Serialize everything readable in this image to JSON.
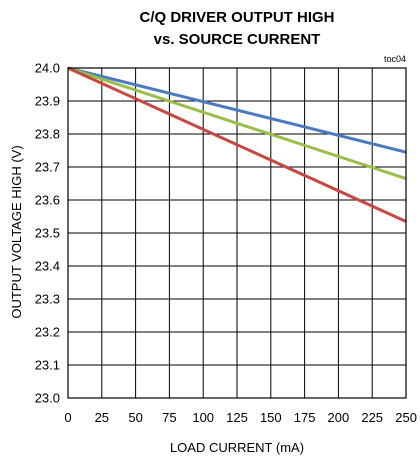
{
  "chart_data": {
    "type": "line",
    "title": "C/Q DRIVER OUTPUT HIGH",
    "subtitle": "vs. SOURCE CURRENT",
    "annotation": "toc04",
    "xlabel": "LOAD CURRENT  (mA)",
    "ylabel": "OUTPUT VOLTAGE HIGH (V)",
    "xlim": [
      0,
      250
    ],
    "ylim": [
      23.0,
      24.0
    ],
    "xticks": [
      "0",
      "25",
      "50",
      "75",
      "100",
      "125",
      "150",
      "175",
      "200",
      "225",
      "250"
    ],
    "yticks": [
      "23.0",
      "23.1",
      "23.2",
      "23.3",
      "23.4",
      "23.5",
      "23.6",
      "23.7",
      "23.8",
      "23.9",
      "24.0"
    ],
    "grid": true,
    "series": [
      {
        "color": "#4a7bc0",
        "x": [
          0,
          250
        ],
        "y": [
          24.0,
          23.745
        ]
      },
      {
        "color": "#98bf4a",
        "x": [
          0,
          250
        ],
        "y": [
          24.0,
          23.665
        ]
      },
      {
        "color": "#c84840",
        "x": [
          0,
          250
        ],
        "y": [
          24.0,
          23.535
        ]
      }
    ]
  }
}
